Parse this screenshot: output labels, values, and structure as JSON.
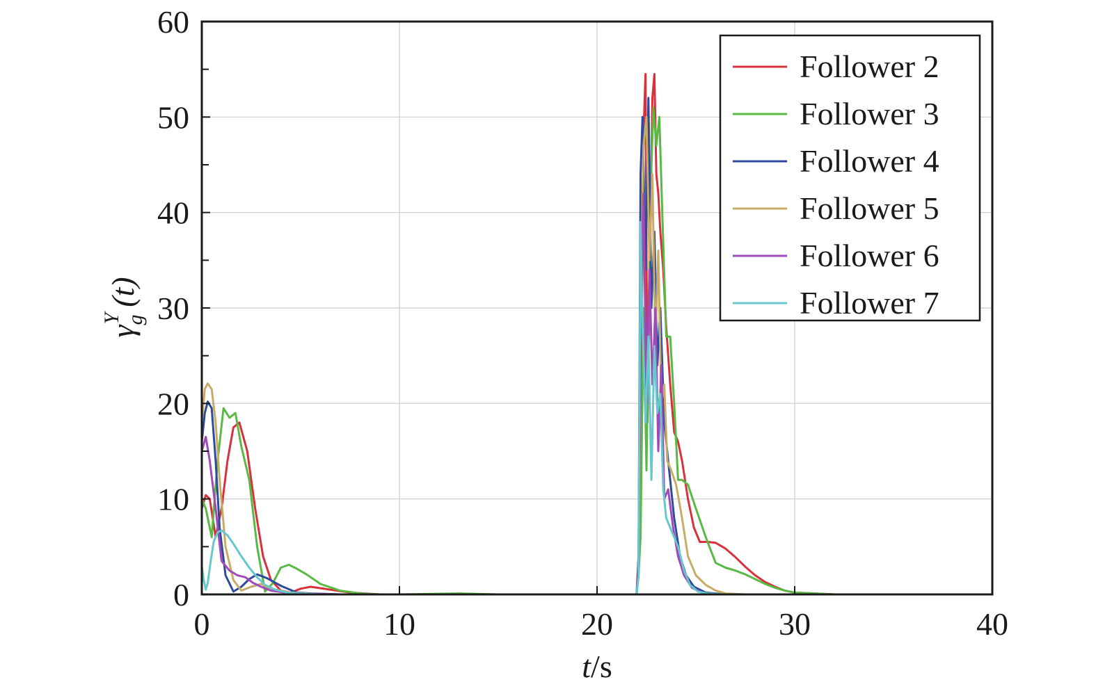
{
  "chart_data": {
    "type": "line",
    "xlabel": {
      "italic": "t",
      "unit": "/s"
    },
    "ylabel": {
      "base": "γ",
      "sub": "g",
      "sup": "Y",
      "arg": "(t)"
    },
    "xlim": [
      0,
      40
    ],
    "ylim": [
      0,
      60
    ],
    "xticks": [
      0,
      10,
      20,
      30,
      40
    ],
    "yticks": [
      0,
      10,
      20,
      30,
      40,
      50,
      60
    ],
    "grid": true,
    "legend_position": "top-right",
    "series": [
      {
        "name": "Follower 2",
        "color": "#d7313c",
        "x": [
          0,
          0.2,
          0.4,
          0.7,
          1.0,
          1.3,
          1.6,
          1.9,
          2.3,
          2.7,
          3.1,
          3.5,
          4.0,
          4.5,
          5.0,
          5.5,
          6.5,
          7.5,
          9,
          12,
          15,
          20,
          22.0,
          22.1,
          22.2,
          22.35,
          22.45,
          22.55,
          22.7,
          22.8,
          22.9,
          23.0,
          23.1,
          23.2,
          23.35,
          23.5,
          23.7,
          23.9,
          24.1,
          24.3,
          24.6,
          24.9,
          25.2,
          25.6,
          26.0,
          26.5,
          27.0,
          27.5,
          28.0,
          28.5,
          29.0,
          29.5,
          30.0,
          31,
          32,
          33,
          35
        ],
        "y": [
          9,
          10.4,
          10,
          6,
          9,
          14,
          17.5,
          18,
          15,
          9,
          4,
          1.5,
          0.4,
          0.2,
          0.6,
          0.8,
          0.5,
          0.2,
          0,
          0,
          0,
          0,
          0,
          4,
          12,
          48,
          54.5,
          18,
          38,
          52,
          54.5,
          44,
          42,
          38,
          34,
          28,
          22,
          17,
          16,
          14,
          10,
          7,
          5.5,
          5.5,
          5.4,
          4.8,
          3.9,
          2.9,
          2.0,
          1.3,
          0.8,
          0.4,
          0.2,
          0.1,
          0,
          0,
          0
        ]
      },
      {
        "name": "Follower 3",
        "color": "#5ab845",
        "x": [
          0,
          0.2,
          0.5,
          0.8,
          1.1,
          1.4,
          1.7,
          2.0,
          2.4,
          2.8,
          3.2,
          3.6,
          4.0,
          4.4,
          4.8,
          5.3,
          6.0,
          7.0,
          8.0,
          9.0,
          10,
          13,
          15,
          20,
          22.0,
          22.1,
          22.2,
          22.35,
          22.5,
          22.7,
          22.85,
          23.0,
          23.15,
          23.3,
          23.5,
          23.7,
          23.9,
          24.1,
          24.3,
          24.6,
          25.0,
          25.5,
          26.0,
          26.5,
          27.0,
          27.5,
          28.0,
          28.5,
          29.0,
          29.5,
          30.0,
          31,
          32,
          33,
          35
        ],
        "y": [
          10,
          9,
          6,
          14,
          19.5,
          18.5,
          19,
          15.5,
          12,
          5,
          0.3,
          1.2,
          2.8,
          3.1,
          2.7,
          2.1,
          1.1,
          0.4,
          0.1,
          0,
          0,
          0.1,
          0,
          0,
          0,
          2,
          6,
          30,
          13,
          42,
          51,
          47,
          50,
          40,
          27,
          27,
          20,
          12,
          12,
          11.5,
          9,
          6,
          3.3,
          2.8,
          2.5,
          2.1,
          1.6,
          1.1,
          0.7,
          0.4,
          0.2,
          0.1,
          0,
          0,
          0
        ]
      },
      {
        "name": "Follower 4",
        "color": "#2f4a9c",
        "x": [
          0,
          0.15,
          0.3,
          0.5,
          0.7,
          0.9,
          1.2,
          1.6,
          2.0,
          2.4,
          2.8,
          3.3,
          4.0,
          4.8,
          5.5,
          7,
          10,
          20,
          22.0,
          22.1,
          22.2,
          22.3,
          22.45,
          22.6,
          22.75,
          22.9,
          23.05,
          23.2,
          23.4,
          23.6,
          23.9,
          24.2,
          24.5,
          24.9,
          25.5,
          26.5,
          28,
          35
        ],
        "y": [
          16,
          19,
          20.2,
          19.5,
          14,
          7,
          2,
          0.3,
          0.8,
          1.6,
          2.1,
          1.7,
          0.9,
          0.2,
          0.1,
          0,
          0,
          0,
          0,
          3,
          44,
          50,
          34,
          52,
          30,
          38,
          24,
          30,
          18,
          14,
          8,
          4,
          2,
          0.8,
          0.2,
          0,
          0,
          0
        ]
      },
      {
        "name": "Follower 5",
        "color": "#c8ab67",
        "x": [
          0,
          0.15,
          0.3,
          0.5,
          0.7,
          0.9,
          1.2,
          1.6,
          2.0,
          2.5,
          3.0,
          3.5,
          4.5,
          6,
          10,
          20,
          22.0,
          22.1,
          22.2,
          22.35,
          22.5,
          22.65,
          22.8,
          22.95,
          23.1,
          23.25,
          23.4,
          23.55,
          23.75,
          24.0,
          24.3,
          24.6,
          25.0,
          25.5,
          26.0,
          26.5,
          27.5,
          35
        ],
        "y": [
          18,
          21.5,
          22.1,
          21.5,
          18,
          12,
          5,
          1.5,
          0.4,
          0.8,
          1.1,
          0.6,
          0.2,
          0,
          0,
          0,
          0,
          2,
          30,
          47,
          50,
          35,
          44,
          26,
          36,
          20,
          22,
          14,
          13,
          11.5,
          8,
          4,
          2,
          1,
          0.4,
          0.1,
          0,
          0
        ]
      },
      {
        "name": "Follower 6",
        "color": "#a04ab8",
        "x": [
          0,
          0.2,
          0.4,
          0.7,
          1.0,
          1.4,
          1.8,
          2.2,
          2.6,
          3.0,
          3.5,
          4.2,
          5,
          7,
          10,
          20,
          22.0,
          22.1,
          22.2,
          22.35,
          22.5,
          22.65,
          22.8,
          22.95,
          23.1,
          23.25,
          23.4,
          23.6,
          23.85,
          24.1,
          24.4,
          24.8,
          25.3,
          26,
          35
        ],
        "y": [
          15,
          16.5,
          14,
          9,
          3.5,
          2.5,
          2,
          1.8,
          1.2,
          0.8,
          0.4,
          0.2,
          0.1,
          0,
          0,
          0,
          0,
          2,
          30,
          42,
          20,
          34,
          22,
          30,
          15,
          24,
          10,
          11,
          7,
          4,
          2,
          0.7,
          0.2,
          0,
          0
        ]
      },
      {
        "name": "Follower 7",
        "color": "#68c6cd",
        "x": [
          0,
          0.1,
          0.2,
          0.3,
          0.45,
          0.6,
          0.8,
          1.0,
          1.3,
          1.6,
          2.0,
          2.4,
          2.8,
          3.2,
          3.7,
          4.3,
          5,
          6,
          7,
          10,
          20,
          22.0,
          22.1,
          22.2,
          22.3,
          22.45,
          22.6,
          22.75,
          22.9,
          23.05,
          23.2,
          23.35,
          23.5,
          23.7,
          23.9,
          24.1,
          24.4,
          24.7,
          25.1,
          25.6,
          26.5,
          35
        ],
        "y": [
          3,
          1.5,
          0.5,
          1.2,
          3.5,
          5.5,
          6.5,
          6.7,
          6.2,
          5.3,
          4.0,
          2.8,
          1.8,
          1.0,
          0.5,
          0.2,
          0.1,
          0,
          0,
          0,
          0,
          0,
          2,
          39,
          28,
          18,
          27,
          12,
          26,
          19,
          21,
          11,
          8,
          7,
          6,
          5,
          2.5,
          1,
          0.3,
          0.1,
          0,
          0
        ]
      }
    ]
  }
}
